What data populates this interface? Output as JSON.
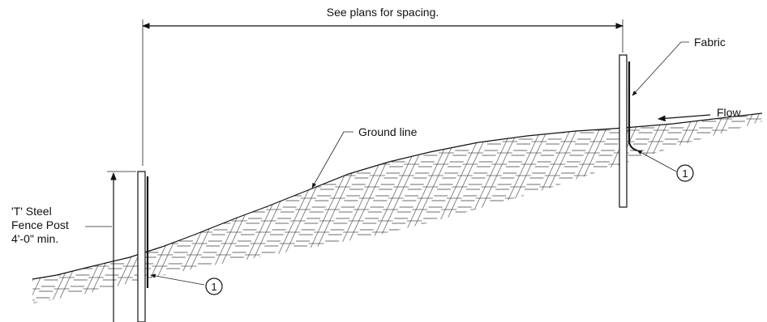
{
  "labels": {
    "spacing": "See plans for spacing.",
    "fabric": "Fabric",
    "flow": "Flow",
    "ground_line": "Ground line",
    "post_line1": "'T' Steel",
    "post_line2": "Fence Post",
    "post_line3": "4'-0\" min.",
    "callout_left": "1",
    "callout_right": "1"
  },
  "colors": {
    "line": "#111111",
    "background": "#ffffff"
  }
}
